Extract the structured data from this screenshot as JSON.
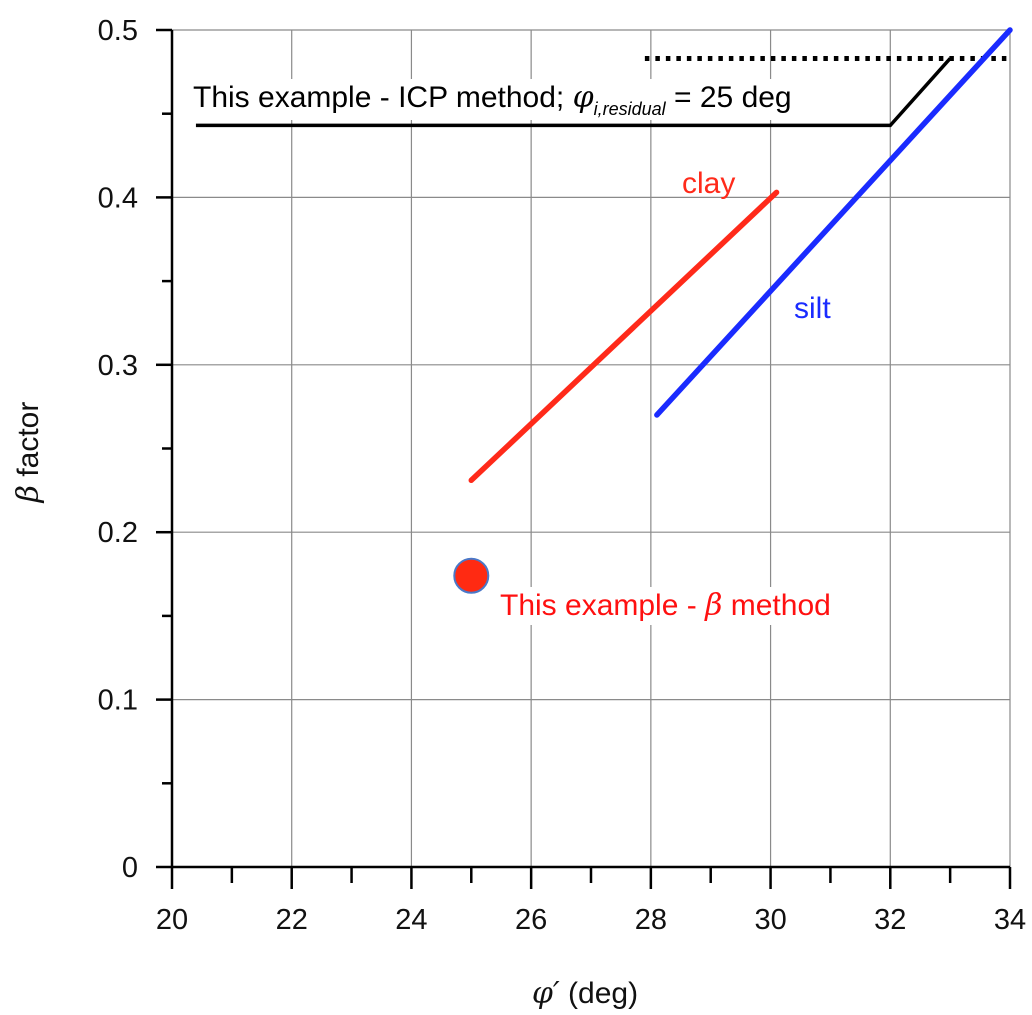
{
  "chart_data": {
    "type": "line",
    "title": "",
    "xlabel_symbol": "φ′",
    "xlabel_unit": " (deg)",
    "ylabel_symbol": "β",
    "ylabel_text": " factor",
    "xlim": [
      20,
      34
    ],
    "ylim": [
      0,
      0.5
    ],
    "x_ticks": [
      20,
      22,
      24,
      26,
      28,
      30,
      32,
      34
    ],
    "x_tick_labels": [
      "20",
      "22",
      "24",
      "26",
      "28",
      "30",
      "32",
      "34"
    ],
    "y_ticks": [
      0,
      0.1,
      0.2,
      0.3,
      0.4,
      0.5
    ],
    "y_tick_labels": [
      "0",
      "0.1",
      "0.2",
      "0.3",
      "0.4",
      "0.5"
    ],
    "x_minor_step": 1,
    "y_minor_step": 0.05,
    "grid": true,
    "series": [
      {
        "name": "clay",
        "color": "#ff2a1a",
        "points": [
          [
            25.0,
            0.231
          ],
          [
            30.1,
            0.403
          ]
        ]
      },
      {
        "name": "silt",
        "color": "#1a2bff",
        "points": [
          [
            28.1,
            0.27
          ],
          [
            34.0,
            0.5
          ]
        ]
      }
    ],
    "reference_lines": [
      {
        "style": "solid",
        "color": "#000000",
        "points": [
          [
            20.4,
            0.443
          ],
          [
            32.0,
            0.443
          ],
          [
            33.0,
            0.483
          ]
        ]
      },
      {
        "style": "dotted",
        "color": "#000000",
        "points": [
          [
            27.9,
            0.483
          ],
          [
            34.0,
            0.483
          ]
        ]
      }
    ],
    "markers": [
      {
        "x": 25.0,
        "y": 0.174,
        "color": "#ff2a12",
        "edge_color": "#4a78c8"
      }
    ],
    "annotations": {
      "icp": {
        "prefix": "This example - ICP method; ",
        "symbol": "φ",
        "subscript": "i,residual",
        "suffix": " = 25 deg",
        "color": "#000000"
      },
      "beta": {
        "prefix": "This example - ",
        "symbol": "β",
        "suffix": " method",
        "color": "#ff1010"
      }
    }
  }
}
